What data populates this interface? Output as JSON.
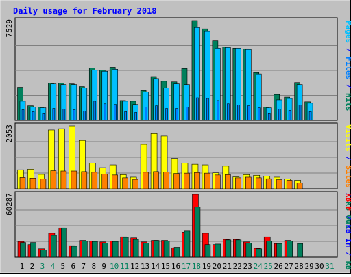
{
  "chart_data": {
    "type": "bar",
    "title": "Daily usage for February 2018",
    "colors": {
      "background": "#c0c0c0",
      "frame_outer": "#ececec",
      "title": "#0000ff",
      "hits": "#00805c",
      "files": "#0080ff",
      "pages": "#00c0ff",
      "visits": "#ffff00",
      "sites": "#ff8000",
      "kb_in": "#0000ff",
      "kb_out": "#00805c",
      "kb_f": "#ff0000",
      "weekday_label": "#000000",
      "weekend_label": "#00805c"
    },
    "x_ticks": [
      {
        "label": "1",
        "weekend": false
      },
      {
        "label": "2",
        "weekend": false
      },
      {
        "label": "3",
        "weekend": true
      },
      {
        "label": "4",
        "weekend": true
      },
      {
        "label": "5",
        "weekend": false
      },
      {
        "label": "6",
        "weekend": false
      },
      {
        "label": "7",
        "weekend": false
      },
      {
        "label": "8",
        "weekend": false
      },
      {
        "label": "9",
        "weekend": false
      },
      {
        "label": "10",
        "weekend": true
      },
      {
        "label": "11",
        "weekend": true
      },
      {
        "label": "12",
        "weekend": false
      },
      {
        "label": "13",
        "weekend": false
      },
      {
        "label": "14",
        "weekend": false
      },
      {
        "label": "15",
        "weekend": false
      },
      {
        "label": "16",
        "weekend": false
      },
      {
        "label": "17",
        "weekend": true
      },
      {
        "label": "18",
        "weekend": true
      },
      {
        "label": "19",
        "weekend": false
      },
      {
        "label": "20",
        "weekend": false
      },
      {
        "label": "21",
        "weekend": false
      },
      {
        "label": "22",
        "weekend": false
      },
      {
        "label": "23",
        "weekend": false
      },
      {
        "label": "24",
        "weekend": true
      },
      {
        "label": "25",
        "weekend": true
      },
      {
        "label": "26",
        "weekend": false
      },
      {
        "label": "27",
        "weekend": false
      },
      {
        "label": "28",
        "weekend": false
      },
      {
        "label": "29",
        "weekend": false
      },
      {
        "label": "30",
        "weekend": false
      },
      {
        "label": "31",
        "weekend": true
      }
    ],
    "panels": [
      {
        "id": "hits-files-pages",
        "ymax_label": "7529",
        "ymax": 7529,
        "legend": [
          {
            "text": "Pages",
            "color_key": "pages"
          },
          {
            "text": " / ",
            "color_key": "title"
          },
          {
            "text": "Files",
            "color_key": "files"
          },
          {
            "text": " / ",
            "color_key": "title"
          },
          {
            "text": "Hits",
            "color_key": "hits"
          }
        ],
        "series": [
          {
            "key": "hits",
            "values": [
              2500,
              1100,
              1000,
              2800,
              2800,
              2750,
              2550,
              3950,
              3800,
              4000,
              1500,
              1450,
              2250,
              3300,
              2950,
              2900,
              3900,
              7529,
              6900,
              6000,
              5550,
              5450,
              5400,
              3600,
              1000,
              1950,
              1750,
              2850,
              1400,
              0,
              0
            ]
          },
          {
            "key": "pages",
            "values": [
              1450,
              1000,
              950,
              2750,
              2700,
              2700,
              2450,
              3800,
              3700,
              3850,
              1450,
              1200,
              2150,
              3150,
              2450,
              2750,
              2700,
              7000,
              6700,
              5450,
              5500,
              5450,
              5350,
              3500,
              950,
              1550,
              1650,
              2700,
              1300,
              0,
              0
            ]
          },
          {
            "key": "files",
            "values": [
              800,
              650,
              550,
              900,
              850,
              800,
              700,
              1450,
              1250,
              1200,
              650,
              600,
              1000,
              1100,
              900,
              900,
              1000,
              1700,
              1650,
              1500,
              1250,
              1150,
              1100,
              950,
              550,
              850,
              750,
              1150,
              650,
              0,
              0
            ]
          }
        ]
      },
      {
        "id": "visits-sites",
        "ymax_label": "2053",
        "ymax": 2053,
        "legend": [
          {
            "text": "Visits",
            "color_key": "visits"
          },
          {
            "text": " / ",
            "color_key": "title"
          },
          {
            "text": "Sites",
            "color_key": "sites"
          },
          {
            "text": " / ",
            "color_key": "title"
          },
          {
            "text": "kB Out",
            "color_key": "kb_out"
          }
        ],
        "series": [
          {
            "key": "visits",
            "values": [
              620,
              640,
              470,
              1920,
              1960,
              2053,
              1580,
              840,
              690,
              780,
              460,
              380,
              1450,
              1800,
              1720,
              990,
              840,
              800,
              780,
              520,
              740,
              390,
              460,
              440,
              410,
              380,
              320,
              280,
              0,
              0,
              0
            ]
          },
          {
            "key": "sites",
            "values": [
              370,
              350,
              320,
              590,
              580,
              580,
              560,
              540,
              480,
              450,
              360,
              310,
              540,
              560,
              550,
              500,
              510,
              530,
              510,
              450,
              460,
              360,
              380,
              360,
              330,
              300,
              280,
              190,
              0,
              0,
              0
            ]
          }
        ]
      },
      {
        "id": "kb",
        "ymax_label": "60287",
        "ymax": 60287,
        "legend": [
          {
            "text": "kB F",
            "color_key": "kb_f"
          },
          {
            "text": " / ",
            "color_key": "title"
          },
          {
            "text": "kB In",
            "color_key": "kb_in"
          },
          {
            "text": " / ",
            "color_key": "title"
          },
          {
            "text": "kB Out",
            "color_key": "kb_out"
          }
        ],
        "series": [
          {
            "key": "kb_f",
            "values": [
              15000,
              12000,
              8000,
              23000,
              28000,
              11000,
              16000,
              15500,
              14500,
              15500,
              19500,
              18500,
              14500,
              16000,
              16000,
              9000,
              24000,
              60287,
              23000,
              12000,
              17000,
              17000,
              14500,
              8500,
              19500,
              13000,
              16000,
              0,
              0,
              0,
              0
            ]
          },
          {
            "key": "kb_out",
            "values": [
              14000,
              14000,
              7000,
              21000,
              28000,
              10500,
              15500,
              15000,
              13500,
              15000,
              19000,
              17000,
              13500,
              16000,
              15500,
              9500,
              25000,
              48000,
              12000,
              12500,
              16500,
              16500,
              13500,
              8000,
              15500,
              13000,
              15500,
              13000,
              0,
              0,
              0
            ]
          },
          {
            "key": "kb_in",
            "values": [
              0,
              0,
              0,
              0,
              0,
              0,
              0,
              0,
              0,
              0,
              0,
              0,
              0,
              0,
              0,
              0,
              0,
              0,
              0,
              0,
              0,
              0,
              0,
              0,
              0,
              0,
              0,
              0,
              0,
              0,
              0
            ]
          }
        ]
      }
    ]
  }
}
